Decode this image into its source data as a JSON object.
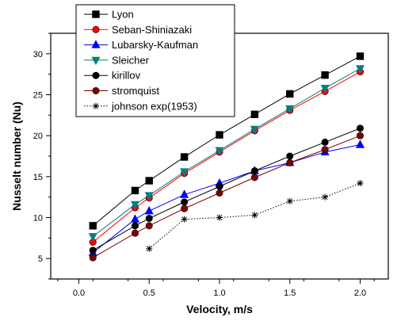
{
  "chart_data": {
    "type": "line",
    "xlabel": "Velocity, m/s",
    "ylabel": "Nusselt number (Nu)",
    "xlim": [
      -0.2,
      2.2
    ],
    "ylim": [
      2.5,
      32.5
    ],
    "x_ticks": [
      0.0,
      0.5,
      1.0,
      1.5,
      2.0
    ],
    "y_ticks": [
      5,
      10,
      15,
      20,
      25,
      30
    ],
    "x_tick_labels": [
      "0.0",
      "0.5",
      "1.0",
      "1.5",
      "2.0"
    ],
    "y_tick_labels": [
      "5",
      "10",
      "15",
      "20",
      "25",
      "30"
    ],
    "legend_position": "top-left",
    "series": [
      {
        "name": "Lyon",
        "color": "#000000",
        "marker": "square",
        "line": "solid",
        "x": [
          0.1,
          0.4,
          0.5,
          0.75,
          1.0,
          1.25,
          1.5,
          1.75,
          2.0
        ],
        "y": [
          9.0,
          13.3,
          14.5,
          17.4,
          20.1,
          22.6,
          25.1,
          27.4,
          29.7
        ]
      },
      {
        "name": "Seban-Shiniazaki",
        "color": "#ff0000",
        "marker": "circle",
        "line": "solid",
        "x": [
          0.1,
          0.4,
          0.5,
          0.75,
          1.0,
          1.25,
          1.5,
          1.75,
          2.0
        ],
        "y": [
          7.0,
          11.2,
          12.4,
          15.4,
          18.0,
          20.6,
          23.1,
          25.4,
          27.8
        ]
      },
      {
        "name": "Lubarsky-Kaufman",
        "color": "#0000ff",
        "marker": "triangle-up",
        "line": "solid",
        "x": [
          0.1,
          0.4,
          0.5,
          0.75,
          1.0,
          1.25,
          1.5,
          1.75,
          2.0
        ],
        "y": [
          5.7,
          9.8,
          10.8,
          12.8,
          14.2,
          15.7,
          16.7,
          18.0,
          18.9
        ]
      },
      {
        "name": "Sleicher",
        "color": "#008080",
        "marker": "triangle-down",
        "line": "solid",
        "x": [
          0.1,
          0.4,
          0.5,
          0.75,
          1.0,
          1.25,
          1.5,
          1.75,
          2.0
        ],
        "y": [
          7.7,
          11.6,
          12.7,
          15.6,
          18.2,
          20.8,
          23.3,
          25.8,
          28.2
        ]
      },
      {
        "name": "kirillov",
        "color": "#000000",
        "marker": "circle",
        "line": "solid",
        "x": [
          0.1,
          0.4,
          0.5,
          0.75,
          1.0,
          1.25,
          1.5,
          1.75,
          2.0
        ],
        "y": [
          6.0,
          9.0,
          9.9,
          11.9,
          13.8,
          15.7,
          17.5,
          19.2,
          20.9
        ]
      },
      {
        "name": "stromquist",
        "color": "#800000",
        "marker": "circle",
        "line": "solid",
        "x": [
          0.1,
          0.4,
          0.5,
          0.75,
          1.0,
          1.25,
          1.5,
          1.75,
          2.0
        ],
        "y": [
          5.1,
          8.1,
          9.0,
          11.1,
          13.0,
          14.9,
          16.7,
          18.3,
          20.0
        ]
      },
      {
        "name": "johnson exp(1953)",
        "color": "#000000",
        "marker": "asterisk",
        "line": "dotted",
        "x": [
          0.5,
          0.75,
          1.0,
          1.25,
          1.5,
          1.75,
          2.0
        ],
        "y": [
          6.2,
          9.8,
          10.0,
          10.3,
          12.0,
          12.5,
          14.2
        ]
      }
    ]
  }
}
